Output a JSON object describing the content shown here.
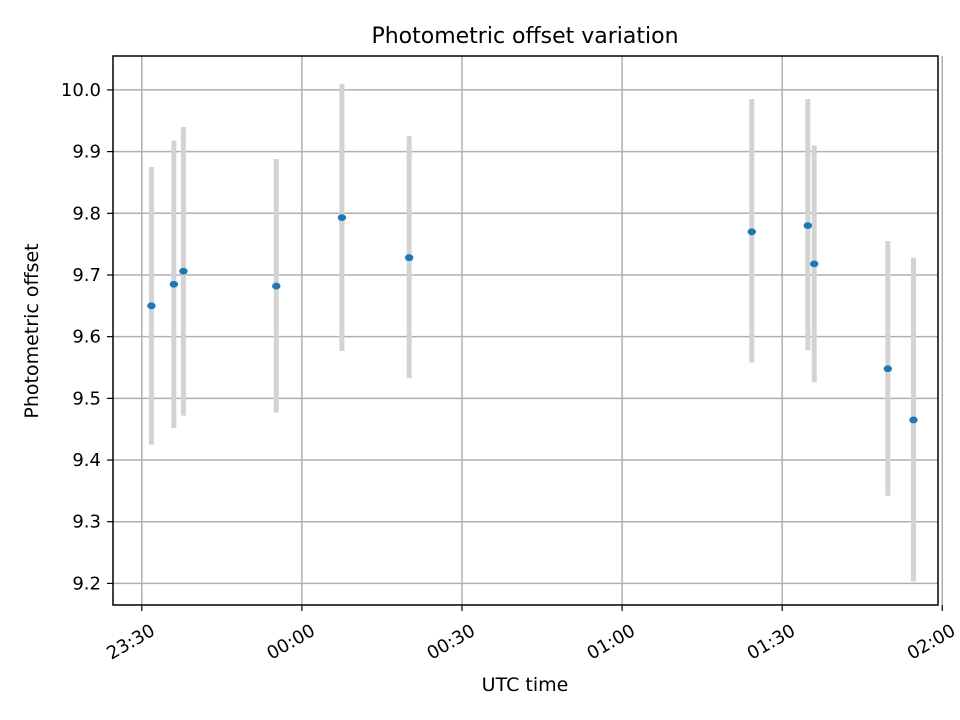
{
  "chart_data": {
    "type": "scatter",
    "title": "Photometric offset variation",
    "xlabel": "UTC time",
    "ylabel": "Photometric offset",
    "x_unit": "time of day (HH:MM, UTC)",
    "xlim": [
      "23:24.6",
      "01:59.2"
    ],
    "ylim": [
      9.165,
      10.055
    ],
    "x_ticks": [
      "23:30",
      "00:00",
      "00:30",
      "01:00",
      "01:30",
      "02:00"
    ],
    "y_ticks": [
      "9.2",
      "9.3",
      "9.4",
      "9.5",
      "9.6",
      "9.7",
      "9.8",
      "9.9",
      "10.0"
    ],
    "grid": true,
    "colors": {
      "point": "#1f77b4",
      "error_bar": "#d3d3d3"
    },
    "points": [
      {
        "time": "23:31.8",
        "y": 9.65,
        "ylow": 9.425,
        "yhigh": 9.875
      },
      {
        "time": "23:36.0",
        "y": 9.685,
        "ylow": 9.452,
        "yhigh": 9.918
      },
      {
        "time": "23:37.8",
        "y": 9.706,
        "ylow": 9.472,
        "yhigh": 9.94
      },
      {
        "time": "23:55.2",
        "y": 9.682,
        "ylow": 9.477,
        "yhigh": 9.888
      },
      {
        "time": "00:07.5",
        "y": 9.793,
        "ylow": 9.577,
        "yhigh": 10.01
      },
      {
        "time": "00:20.1",
        "y": 9.728,
        "ylow": 9.533,
        "yhigh": 9.925
      },
      {
        "time": "01:24.3",
        "y": 9.77,
        "ylow": 9.558,
        "yhigh": 9.985
      },
      {
        "time": "01:34.8",
        "y": 9.78,
        "ylow": 9.578,
        "yhigh": 9.985
      },
      {
        "time": "01:36.0",
        "y": 9.718,
        "ylow": 9.526,
        "yhigh": 9.91
      },
      {
        "time": "01:49.8",
        "y": 9.548,
        "ylow": 9.342,
        "yhigh": 9.755
      },
      {
        "time": "01:54.6",
        "y": 9.465,
        "ylow": 9.203,
        "yhigh": 9.728
      }
    ]
  }
}
